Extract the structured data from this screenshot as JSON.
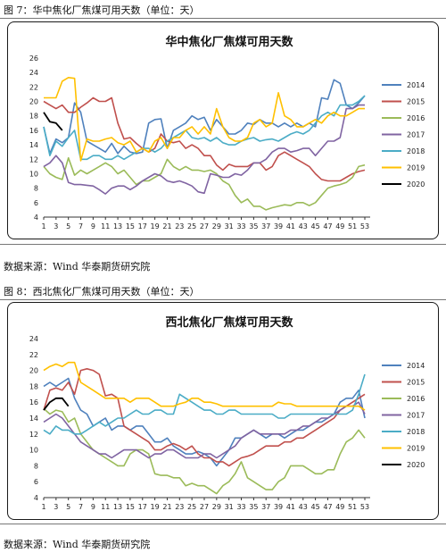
{
  "figures": [
    {
      "caption": "图 7：华中焦化厂焦煤可用天数（单位：天）",
      "source": "数据来源：Wind 华泰期货研究院"
    },
    {
      "caption": "图 8：西北焦化厂焦煤可用天数（单位：天）",
      "source": "数据来源：Wind 华泰期货研究院"
    }
  ],
  "series_colors": {
    "2014": "#4f81bd",
    "2015": "#c0504d",
    "2016": "#9bbb59",
    "2017": "#8064a2",
    "2018": "#4bacc6",
    "2019": "#ffc000",
    "2020": "#000000"
  },
  "chart_data": [
    {
      "type": "line",
      "title": "华中焦化厂焦煤可用天数",
      "x_ticks": [
        1,
        3,
        5,
        7,
        9,
        11,
        13,
        15,
        17,
        19,
        21,
        23,
        25,
        27,
        29,
        31,
        33,
        35,
        37,
        39,
        41,
        43,
        45,
        47,
        49,
        51,
        53
      ],
      "ylim": [
        4,
        26
      ],
      "y_ticks": [
        4,
        6,
        8,
        10,
        12,
        14,
        16,
        18,
        20,
        22,
        24,
        26
      ],
      "grid": false,
      "legend_position": "right",
      "series": [
        {
          "name": "2014",
          "values": [
            16.5,
            12.8,
            14.8,
            14.3,
            15.0,
            19.8,
            18.5,
            14.5,
            14.0,
            13.5,
            13.0,
            14.2,
            12.8,
            13.8,
            13.0,
            12.8,
            13.0,
            17.0,
            17.5,
            17.6,
            13.5,
            16.0,
            16.5,
            17.0,
            18.0,
            17.5,
            17.8,
            16.0,
            17.5,
            16.5,
            15.5,
            15.5,
            16.0,
            17.0,
            16.8,
            17.5,
            17.0,
            17.0,
            16.5,
            17.0,
            16.5,
            17.0,
            16.5,
            17.0,
            16.5,
            20.5,
            20.3,
            23.0,
            22.5,
            19.5,
            19.0,
            19.8,
            20.8
          ]
        },
        {
          "name": "2015",
          "values": [
            20.0,
            19.5,
            19.0,
            19.5,
            18.5,
            18.5,
            19.2,
            19.8,
            20.5,
            20.0,
            20.0,
            20.5,
            17.0,
            14.8,
            15.0,
            14.2,
            13.5,
            13.0,
            13.5,
            15.5,
            14.5,
            14.3,
            14.5,
            13.5,
            14.0,
            13.5,
            12.5,
            12.5,
            11.2,
            10.5,
            11.3,
            11.0,
            11.0,
            11.0,
            11.5,
            11.5,
            10.5,
            11.0,
            12.5,
            13.0,
            12.5,
            12.0,
            11.5,
            11.0,
            10.0,
            9.2,
            9.0,
            9.0,
            9.0,
            9.5,
            10.0,
            10.3,
            10.5
          ]
        },
        {
          "name": "2016",
          "values": [
            11.0,
            10.0,
            9.5,
            9.2,
            12.2,
            9.8,
            10.5,
            10.0,
            10.5,
            11.0,
            11.5,
            11.0,
            10.0,
            10.5,
            9.5,
            8.5,
            9.0,
            9.0,
            9.5,
            10.0,
            12.0,
            11.0,
            10.5,
            11.0,
            10.5,
            10.5,
            10.3,
            10.5,
            10.0,
            9.0,
            8.5,
            7.0,
            6.0,
            6.5,
            5.5,
            5.5,
            5.0,
            5.3,
            5.5,
            5.7,
            5.6,
            6.0,
            6.0,
            5.6,
            6.0,
            7.0,
            8.0,
            8.3,
            8.5,
            8.8,
            9.5,
            11.0,
            11.2
          ]
        },
        {
          "name": "2017",
          "values": [
            11.0,
            11.5,
            12.5,
            11.5,
            8.8,
            8.5,
            8.5,
            8.4,
            8.3,
            7.8,
            7.2,
            8.0,
            8.3,
            8.3,
            7.8,
            8.3,
            9.0,
            9.5,
            10.0,
            9.7,
            9.0,
            8.8,
            9.0,
            8.7,
            8.3,
            7.5,
            7.3,
            10.0,
            9.8,
            9.5,
            9.5,
            10.0,
            9.8,
            10.5,
            11.5,
            11.5,
            12.0,
            13.0,
            13.5,
            13.5,
            13.0,
            13.2,
            13.5,
            13.5,
            12.5,
            13.5,
            14.5,
            14.5,
            15.0,
            19.0,
            19.0,
            19.5,
            19.5
          ]
        },
        {
          "name": "2018",
          "values": [
            16.5,
            12.5,
            14.5,
            13.8,
            15.0,
            16.0,
            12.0,
            12.0,
            12.5,
            12.5,
            12.0,
            12.0,
            12.5,
            12.0,
            12.5,
            13.0,
            13.5,
            13.5,
            13.0,
            13.5,
            14.5,
            15.0,
            15.5,
            16.0,
            15.0,
            14.8,
            15.0,
            14.5,
            15.0,
            14.3,
            14.0,
            14.0,
            14.5,
            14.8,
            15.0,
            14.5,
            14.7,
            14.8,
            14.5,
            15.0,
            15.5,
            15.8,
            15.5,
            16.0,
            17.0,
            18.0,
            18.5,
            18.0,
            19.5,
            19.5,
            19.5,
            20.0,
            20.8
          ]
        },
        {
          "name": "2019",
          "values": [
            20.5,
            20.5,
            20.5,
            22.8,
            23.3,
            23.2,
            11.8,
            14.8,
            14.5,
            14.5,
            14.8,
            15.0,
            14.3,
            14.0,
            14.5,
            13.0,
            13.5,
            13.0,
            14.5,
            15.0,
            13.5,
            15.0,
            15.0,
            16.0,
            16.5,
            15.5,
            16.5,
            15.5,
            19.0,
            16.5,
            15.0,
            14.5,
            14.5,
            15.0,
            17.0,
            17.5,
            16.5,
            17.0,
            21.2,
            18.0,
            17.5,
            16.5,
            16.5,
            17.0,
            17.5,
            17.0,
            18.0,
            18.5,
            18.0,
            18.0,
            18.5,
            19.0,
            19.0
          ]
        },
        {
          "name": "2020",
          "values": [
            18.5,
            17.2,
            17.0,
            16.0
          ]
        }
      ]
    },
    {
      "type": "line",
      "title": "西北焦化厂焦煤可用天数",
      "x_ticks": [
        1,
        3,
        5,
        7,
        9,
        11,
        13,
        15,
        17,
        19,
        21,
        23,
        25,
        27,
        29,
        31,
        33,
        35,
        37,
        39,
        41,
        43,
        45,
        47,
        49,
        51,
        53
      ],
      "ylim": [
        4,
        24
      ],
      "y_ticks": [
        4,
        6,
        8,
        10,
        12,
        14,
        16,
        18,
        20,
        22,
        24
      ],
      "grid": false,
      "legend_position": "right",
      "series": [
        {
          "name": "2014",
          "values": [
            18.0,
            18.5,
            18.0,
            18.5,
            19.0,
            16.5,
            15.0,
            14.5,
            13.0,
            13.5,
            14.0,
            12.5,
            13.0,
            13.0,
            12.5,
            13.0,
            13.0,
            12.0,
            11.0,
            11.0,
            11.5,
            10.5,
            10.0,
            9.5,
            9.5,
            9.8,
            9.5,
            9.0,
            8.0,
            9.0,
            10.0,
            11.5,
            11.5,
            12.0,
            12.5,
            12.0,
            11.5,
            12.0,
            12.0,
            11.5,
            12.0,
            12.5,
            12.5,
            13.0,
            13.5,
            13.5,
            14.0,
            14.5,
            16.0,
            16.5,
            16.5,
            17.5,
            14.0
          ]
        },
        {
          "name": "2015",
          "values": [
            15.0,
            17.5,
            17.8,
            17.5,
            18.5,
            17.0,
            20.0,
            20.2,
            20.0,
            19.5,
            16.8,
            17.0,
            16.5,
            13.0,
            12.5,
            12.0,
            11.5,
            11.0,
            10.0,
            10.0,
            10.5,
            10.8,
            10.5,
            10.0,
            10.5,
            9.5,
            9.0,
            9.0,
            8.5,
            8.5,
            8.0,
            8.5,
            9.0,
            9.2,
            9.5,
            10.0,
            10.5,
            10.5,
            10.5,
            11.0,
            11.0,
            11.5,
            11.5,
            12.0,
            12.5,
            13.0,
            13.5,
            14.0,
            15.0,
            15.5,
            16.0,
            16.5,
            17.0
          ]
        },
        {
          "name": "2016",
          "values": [
            15.2,
            14.5,
            15.0,
            14.8,
            13.5,
            14.0,
            12.0,
            11.0,
            10.0,
            9.5,
            9.0,
            8.5,
            8.0,
            8.0,
            9.5,
            10.0,
            10.0,
            9.5,
            7.0,
            6.8,
            6.8,
            6.5,
            6.5,
            5.5,
            5.8,
            5.5,
            5.5,
            5.0,
            4.5,
            5.5,
            6.0,
            7.0,
            8.5,
            6.5,
            6.0,
            5.5,
            5.0,
            5.0,
            6.0,
            6.5,
            8.0,
            8.0,
            8.0,
            7.5,
            7.0,
            7.0,
            7.5,
            7.5,
            9.5,
            11.0,
            11.5,
            12.5,
            11.5
          ]
        },
        {
          "name": "2017",
          "values": [
            13.5,
            14.0,
            14.5,
            14.0,
            13.0,
            12.0,
            11.0,
            10.5,
            10.0,
            9.5,
            9.5,
            9.0,
            9.5,
            10.0,
            10.0,
            10.0,
            9.5,
            9.0,
            9.5,
            9.5,
            10.0,
            10.0,
            9.5,
            9.0,
            9.0,
            9.0,
            9.5,
            9.5,
            9.0,
            9.5,
            10.0,
            10.5,
            11.5,
            12.0,
            12.5,
            12.0,
            12.0,
            12.0,
            12.0,
            12.0,
            12.5,
            12.5,
            13.0,
            13.0,
            13.5,
            14.0,
            14.0,
            14.5,
            15.0,
            15.5,
            15.5,
            16.0,
            14.5
          ]
        },
        {
          "name": "2018",
          "values": [
            12.5,
            12.0,
            13.0,
            12.5,
            12.5,
            12.0,
            12.0,
            12.5,
            13.0,
            13.5,
            13.0,
            13.5,
            14.0,
            14.0,
            14.5,
            15.0,
            14.5,
            14.5,
            15.0,
            15.0,
            14.5,
            14.5,
            17.0,
            16.5,
            16.0,
            15.5,
            15.0,
            15.0,
            14.5,
            14.5,
            15.0,
            15.0,
            14.5,
            14.5,
            14.5,
            14.5,
            14.5,
            14.5,
            14.0,
            14.0,
            14.5,
            14.5,
            14.5,
            14.5,
            14.5,
            14.5,
            14.5,
            14.5,
            14.5,
            14.5,
            15.0,
            17.0,
            19.5
          ]
        },
        {
          "name": "2019",
          "values": [
            20.0,
            20.5,
            20.8,
            20.5,
            21.0,
            21.0,
            18.5,
            18.0,
            17.5,
            17.0,
            16.5,
            16.5,
            16.5,
            16.5,
            16.0,
            16.5,
            16.5,
            16.5,
            16.0,
            15.5,
            15.5,
            15.5,
            15.8,
            16.0,
            16.5,
            16.5,
            16.0,
            16.0,
            15.8,
            15.5,
            15.5,
            15.5,
            15.5,
            15.5,
            15.5,
            15.5,
            15.5,
            15.5,
            16.0,
            15.8,
            15.8,
            15.5,
            15.5,
            15.5,
            15.5,
            15.5,
            15.5,
            15.5,
            15.5,
            15.5,
            15.5,
            15.5,
            15.0
          ]
        },
        {
          "name": "2020",
          "values": [
            15.0,
            16.0,
            16.5,
            16.5,
            15.5
          ]
        }
      ]
    }
  ]
}
